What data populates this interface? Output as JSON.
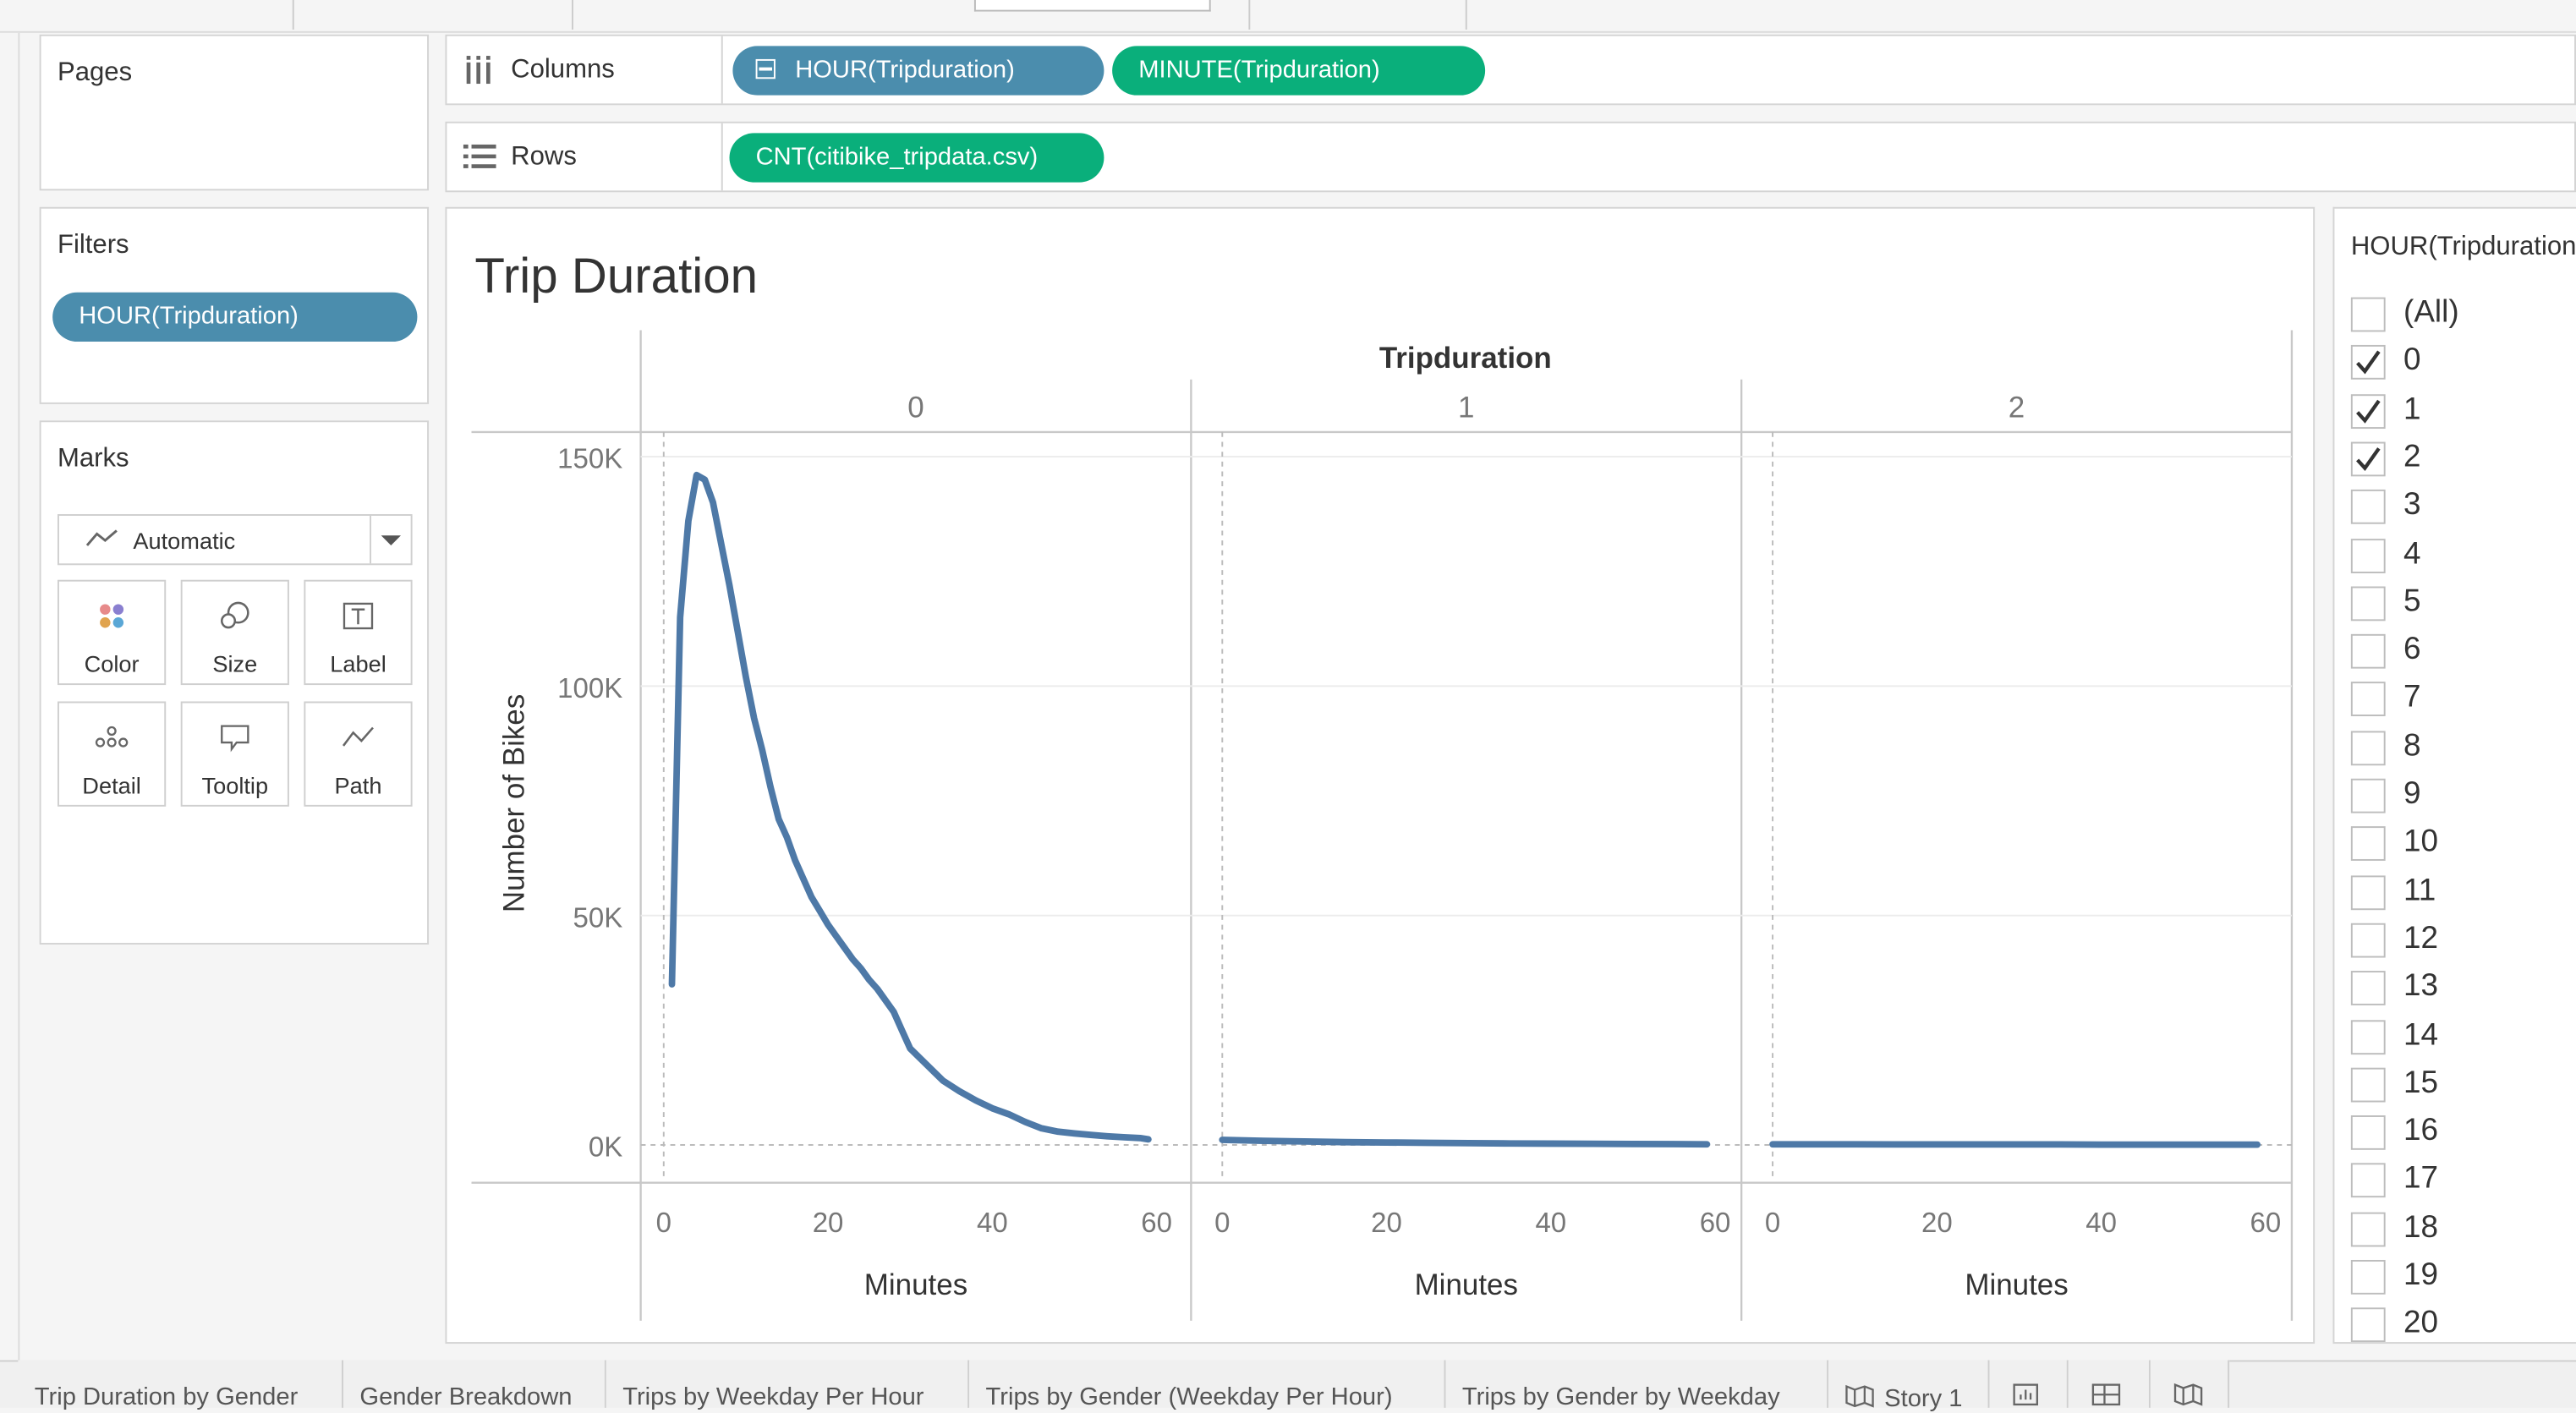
{
  "pages_card": {
    "title": "Pages"
  },
  "filters_card": {
    "title": "Filters",
    "pill": "HOUR(Tripduration)"
  },
  "marks_card": {
    "title": "Marks",
    "mark_type": "Automatic",
    "buttons": [
      "Color",
      "Size",
      "Label",
      "Detail",
      "Tooltip",
      "Path"
    ]
  },
  "shelves": {
    "columns_label": "Columns",
    "columns_pills": [
      "HOUR(Tripduration)",
      "MINUTE(Tripduration)"
    ],
    "rows_label": "Rows",
    "rows_pills": [
      "CNT(citibike_tripdata.csv)"
    ]
  },
  "filter_panel": {
    "title": "HOUR(Tripduration)",
    "items": [
      {
        "label": "(All)",
        "checked": false
      },
      {
        "label": "0",
        "checked": true
      },
      {
        "label": "1",
        "checked": true
      },
      {
        "label": "2",
        "checked": true
      },
      {
        "label": "3",
        "checked": false
      },
      {
        "label": "4",
        "checked": false
      },
      {
        "label": "5",
        "checked": false
      },
      {
        "label": "6",
        "checked": false
      },
      {
        "label": "7",
        "checked": false
      },
      {
        "label": "8",
        "checked": false
      },
      {
        "label": "9",
        "checked": false
      },
      {
        "label": "10",
        "checked": false
      },
      {
        "label": "11",
        "checked": false
      },
      {
        "label": "12",
        "checked": false
      },
      {
        "label": "13",
        "checked": false
      },
      {
        "label": "14",
        "checked": false
      },
      {
        "label": "15",
        "checked": false
      },
      {
        "label": "16",
        "checked": false
      },
      {
        "label": "17",
        "checked": false
      },
      {
        "label": "18",
        "checked": false
      },
      {
        "label": "19",
        "checked": false
      },
      {
        "label": "20",
        "checked": false
      }
    ]
  },
  "tabs": [
    "Trip Duration by Gender",
    "Gender Breakdown",
    "Trips by Weekday Per Hour",
    "Trips by Gender (Weekday Per Hour)",
    "Trips by Gender by Weekday",
    "Story 1"
  ],
  "colors": {
    "line": "#4e79a7",
    "pill_blue": "#4b8dad",
    "pill_green": "#0aaf7b"
  },
  "chart_data": {
    "type": "line",
    "title": "Trip Duration",
    "panel_header": "Tripduration",
    "xlabel": "Minutes",
    "ylabel": "Number of Bikes",
    "ylim": [
      0,
      150000
    ],
    "xlim": [
      0,
      60
    ],
    "y_ticks": [
      "0K",
      "50K",
      "100K",
      "150K"
    ],
    "y_tick_values": [
      0,
      50000,
      100000,
      150000
    ],
    "x_ticks": [
      "0",
      "20",
      "40",
      "60"
    ],
    "x_tick_values": [
      0,
      20,
      40,
      60
    ],
    "grid": true,
    "panels": [
      {
        "label": "0",
        "x": [
          1,
          2,
          3,
          4,
          5,
          6,
          7,
          8,
          9,
          10,
          11,
          12,
          13,
          14,
          15,
          16,
          17,
          18,
          19,
          20,
          21,
          22,
          23,
          24,
          25,
          26,
          27,
          28,
          29,
          30,
          32,
          34,
          36,
          38,
          40,
          42,
          44,
          46,
          48,
          50,
          52,
          54,
          56,
          58,
          59
        ],
        "values": [
          35000,
          115000,
          136000,
          146000,
          145000,
          140000,
          131000,
          122000,
          112000,
          102000,
          93000,
          86000,
          78000,
          71000,
          67000,
          62000,
          58000,
          54000,
          51000,
          48000,
          45500,
          43000,
          40500,
          38500,
          36000,
          34000,
          31500,
          29000,
          25000,
          21000,
          17500,
          14000,
          11700,
          9700,
          8000,
          6700,
          5000,
          3600,
          2900,
          2500,
          2200,
          1900,
          1700,
          1500,
          1200
        ]
      },
      {
        "label": "1",
        "x": [
          0,
          5,
          10,
          15,
          20,
          25,
          30,
          35,
          40,
          45,
          50,
          55,
          59
        ],
        "values": [
          1100,
          900,
          750,
          620,
          520,
          450,
          380,
          320,
          280,
          240,
          210,
          180,
          150
        ]
      },
      {
        "label": "2",
        "x": [
          0,
          5,
          10,
          15,
          20,
          25,
          30,
          35,
          40,
          45,
          50,
          55,
          59
        ],
        "values": [
          150,
          140,
          130,
          120,
          110,
          100,
          95,
          90,
          85,
          80,
          75,
          70,
          65
        ]
      }
    ]
  }
}
